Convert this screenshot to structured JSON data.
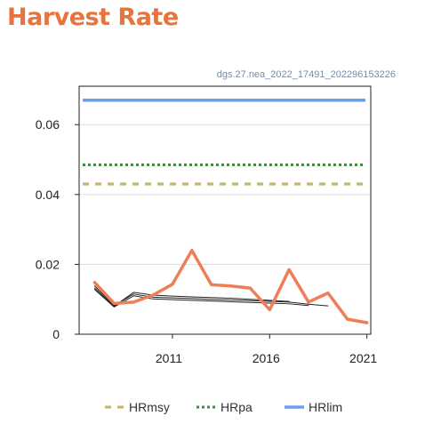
{
  "header": {
    "title": "Harvest Rate"
  },
  "chart_id": "dgs.27.nea_2022_17491_202296153226",
  "chart_data": {
    "type": "line",
    "title": "Harvest Rate",
    "xlabel": "",
    "ylabel": "",
    "xlim": [
      2006.2,
      2021.2
    ],
    "ylim": [
      0,
      0.071
    ],
    "x_ticks": [
      2011,
      2016,
      2021
    ],
    "y_ticks": [
      0,
      0.02,
      0.04,
      0.06
    ],
    "x_tick_labels": [
      "2011",
      "2016",
      "2021"
    ],
    "y_tick_labels": [
      "0",
      "0.02",
      "0.04",
      "0.06"
    ],
    "grid": "horizontal",
    "legend_position": "bottom",
    "series": [
      {
        "role": "assessment",
        "color": "#ef7d57",
        "x": [
          2007,
          2008,
          2009,
          2010,
          2011,
          2012,
          2013,
          2014,
          2015,
          2016,
          2017,
          2018,
          2019,
          2020,
          2021
        ],
        "y": [
          0.0148,
          0.0088,
          0.0092,
          0.0112,
          0.0143,
          0.024,
          0.0142,
          0.0138,
          0.0132,
          0.007,
          0.0185,
          0.0092,
          0.0118,
          0.0043,
          0.0033
        ]
      },
      {
        "role": "retro",
        "color": "#222222",
        "x": [
          2007,
          2008,
          2009,
          2010,
          2011,
          2012,
          2013,
          2014,
          2015,
          2016,
          2017,
          2018,
          2019
        ],
        "y": [
          0.0138,
          0.0082,
          0.0115,
          0.0106,
          0.0104,
          0.0102,
          0.01,
          0.0098,
          0.0096,
          0.0094,
          0.0092,
          0.0086,
          0.0081
        ]
      },
      {
        "role": "retro",
        "color": "#222222",
        "x": [
          2007,
          2008,
          2009,
          2010,
          2011,
          2012,
          2013,
          2014,
          2015,
          2016,
          2017
        ],
        "y": [
          0.0132,
          0.008,
          0.012,
          0.0112,
          0.0109,
          0.0107,
          0.0105,
          0.0103,
          0.01,
          0.0097,
          0.0094
        ]
      },
      {
        "role": "retro",
        "color": "#222222",
        "x": [
          2007,
          2008,
          2009,
          2010,
          2011,
          2012,
          2013,
          2014,
          2015,
          2016,
          2017,
          2018
        ],
        "y": [
          0.0128,
          0.0078,
          0.011,
          0.0101,
          0.0099,
          0.0097,
          0.0095,
          0.0093,
          0.0091,
          0.0089,
          0.0087,
          0.0082
        ]
      }
    ],
    "reference_lines": [
      {
        "name": "HRmsy",
        "y": 0.043,
        "color": "#c9b36a",
        "style": "dashed"
      },
      {
        "name": "HRpa",
        "y": 0.0485,
        "color": "#2e9a2e",
        "style": "dotted"
      },
      {
        "name": "HRlim",
        "y": 0.067,
        "color": "#6b9df0",
        "style": "solid"
      }
    ],
    "legend": [
      {
        "label": "HRmsy",
        "color": "#c9b36a",
        "style": "dashed"
      },
      {
        "label": "HRpa",
        "color": "#2e9a2e",
        "style": "dotted"
      },
      {
        "label": "HRlim",
        "color": "#6b9df0",
        "style": "solid"
      }
    ]
  }
}
